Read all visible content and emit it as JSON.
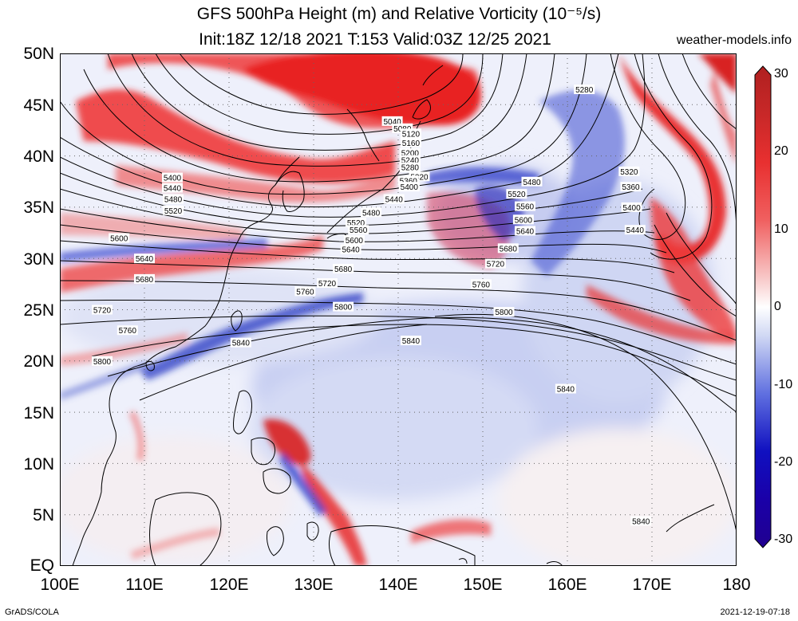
{
  "header": {
    "title_line1": "GFS 500hPa Height (m) and Relative Vorticity (10⁻⁵/s)",
    "title_line2": "Init:18Z 12/18 2021 T:153 Valid:03Z 12/25 2021",
    "site": "weather-models.info"
  },
  "axes": {
    "lat_labels": [
      "50N",
      "45N",
      "40N",
      "35N",
      "30N",
      "25N",
      "20N",
      "15N",
      "10N",
      "5N",
      "EQ"
    ],
    "lon_labels": [
      "100E",
      "110E",
      "120E",
      "130E",
      "140E",
      "150E",
      "160E",
      "170E",
      "180"
    ]
  },
  "colorbar": {
    "labels": [
      "30",
      "20",
      "10",
      "0",
      "-10",
      "-20",
      "-30"
    ],
    "colors": [
      "#b02020",
      "#e83030",
      "#f07070",
      "#f8d0d0",
      "#ffffff",
      "#d0d8f4",
      "#6070e0",
      "#1010c0",
      "#200090"
    ]
  },
  "contour_labels": [
    {
      "text": "5040",
      "lon": 139.3,
      "lat": 43.4
    },
    {
      "text": "5080",
      "lon": 140.5,
      "lat": 42.7
    },
    {
      "text": "5120",
      "lon": 141.5,
      "lat": 42.2
    },
    {
      "text": "5160",
      "lon": 141.5,
      "lat": 41.3
    },
    {
      "text": "5200",
      "lon": 141.4,
      "lat": 40.3
    },
    {
      "text": "5240",
      "lon": 141.4,
      "lat": 39.6
    },
    {
      "text": "5280",
      "lon": 141.4,
      "lat": 38.9
    },
    {
      "text": "5320",
      "lon": 142.5,
      "lat": 38.0
    },
    {
      "text": "5360",
      "lon": 141.2,
      "lat": 37.6
    },
    {
      "text": "5400",
      "lon": 141.3,
      "lat": 37.0
    },
    {
      "text": "5440",
      "lon": 139.5,
      "lat": 35.8
    },
    {
      "text": "5480",
      "lon": 136.8,
      "lat": 34.5
    },
    {
      "text": "5520",
      "lon": 135.0,
      "lat": 33.5
    },
    {
      "text": "5560",
      "lon": 135.3,
      "lat": 32.8
    },
    {
      "text": "5600",
      "lon": 134.8,
      "lat": 31.8
    },
    {
      "text": "5640",
      "lon": 134.4,
      "lat": 30.9
    },
    {
      "text": "5680",
      "lon": 133.5,
      "lat": 29.0
    },
    {
      "text": "5720",
      "lon": 131.6,
      "lat": 27.6
    },
    {
      "text": "5760",
      "lon": 129.0,
      "lat": 26.8
    },
    {
      "text": "5800",
      "lon": 133.5,
      "lat": 25.3
    },
    {
      "text": "5840",
      "lon": 121.4,
      "lat": 21.8
    },
    {
      "text": "5400",
      "lon": 113.3,
      "lat": 37.9
    },
    {
      "text": "5440",
      "lon": 113.3,
      "lat": 36.9
    },
    {
      "text": "5480",
      "lon": 113.4,
      "lat": 35.8
    },
    {
      "text": "5520",
      "lon": 113.4,
      "lat": 34.7
    },
    {
      "text": "5600",
      "lon": 107.0,
      "lat": 32.0
    },
    {
      "text": "5640",
      "lon": 110.0,
      "lat": 30.0
    },
    {
      "text": "5680",
      "lon": 110.0,
      "lat": 28.0
    },
    {
      "text": "5720",
      "lon": 105.0,
      "lat": 25.0
    },
    {
      "text": "5760",
      "lon": 108.0,
      "lat": 23.0
    },
    {
      "text": "5800",
      "lon": 105.0,
      "lat": 20.0
    },
    {
      "text": "5480",
      "lon": 155.8,
      "lat": 37.5
    },
    {
      "text": "5520",
      "lon": 154.0,
      "lat": 36.3
    },
    {
      "text": "5560",
      "lon": 155.0,
      "lat": 35.1
    },
    {
      "text": "5600",
      "lon": 154.8,
      "lat": 33.8
    },
    {
      "text": "5640",
      "lon": 155.0,
      "lat": 32.7
    },
    {
      "text": "5680",
      "lon": 153.0,
      "lat": 31.0
    },
    {
      "text": "5720",
      "lon": 151.5,
      "lat": 29.5
    },
    {
      "text": "5760",
      "lon": 149.8,
      "lat": 27.5
    },
    {
      "text": "5800",
      "lon": 152.5,
      "lat": 24.8
    },
    {
      "text": "5840",
      "lon": 141.5,
      "lat": 22.0
    },
    {
      "text": "5840",
      "lon": 159.8,
      "lat": 17.3
    },
    {
      "text": "5840",
      "lon": 168.7,
      "lat": 4.4
    },
    {
      "text": "5280",
      "lon": 162.0,
      "lat": 46.5
    },
    {
      "text": "5320",
      "lon": 167.3,
      "lat": 38.5
    },
    {
      "text": "5360",
      "lon": 167.5,
      "lat": 37.0
    },
    {
      "text": "5400",
      "lon": 167.6,
      "lat": 35.0
    },
    {
      "text": "5440",
      "lon": 168.0,
      "lat": 32.8
    }
  ],
  "footer": {
    "left": "GrADS/COLA",
    "right": "2021-12-19-07:18"
  }
}
